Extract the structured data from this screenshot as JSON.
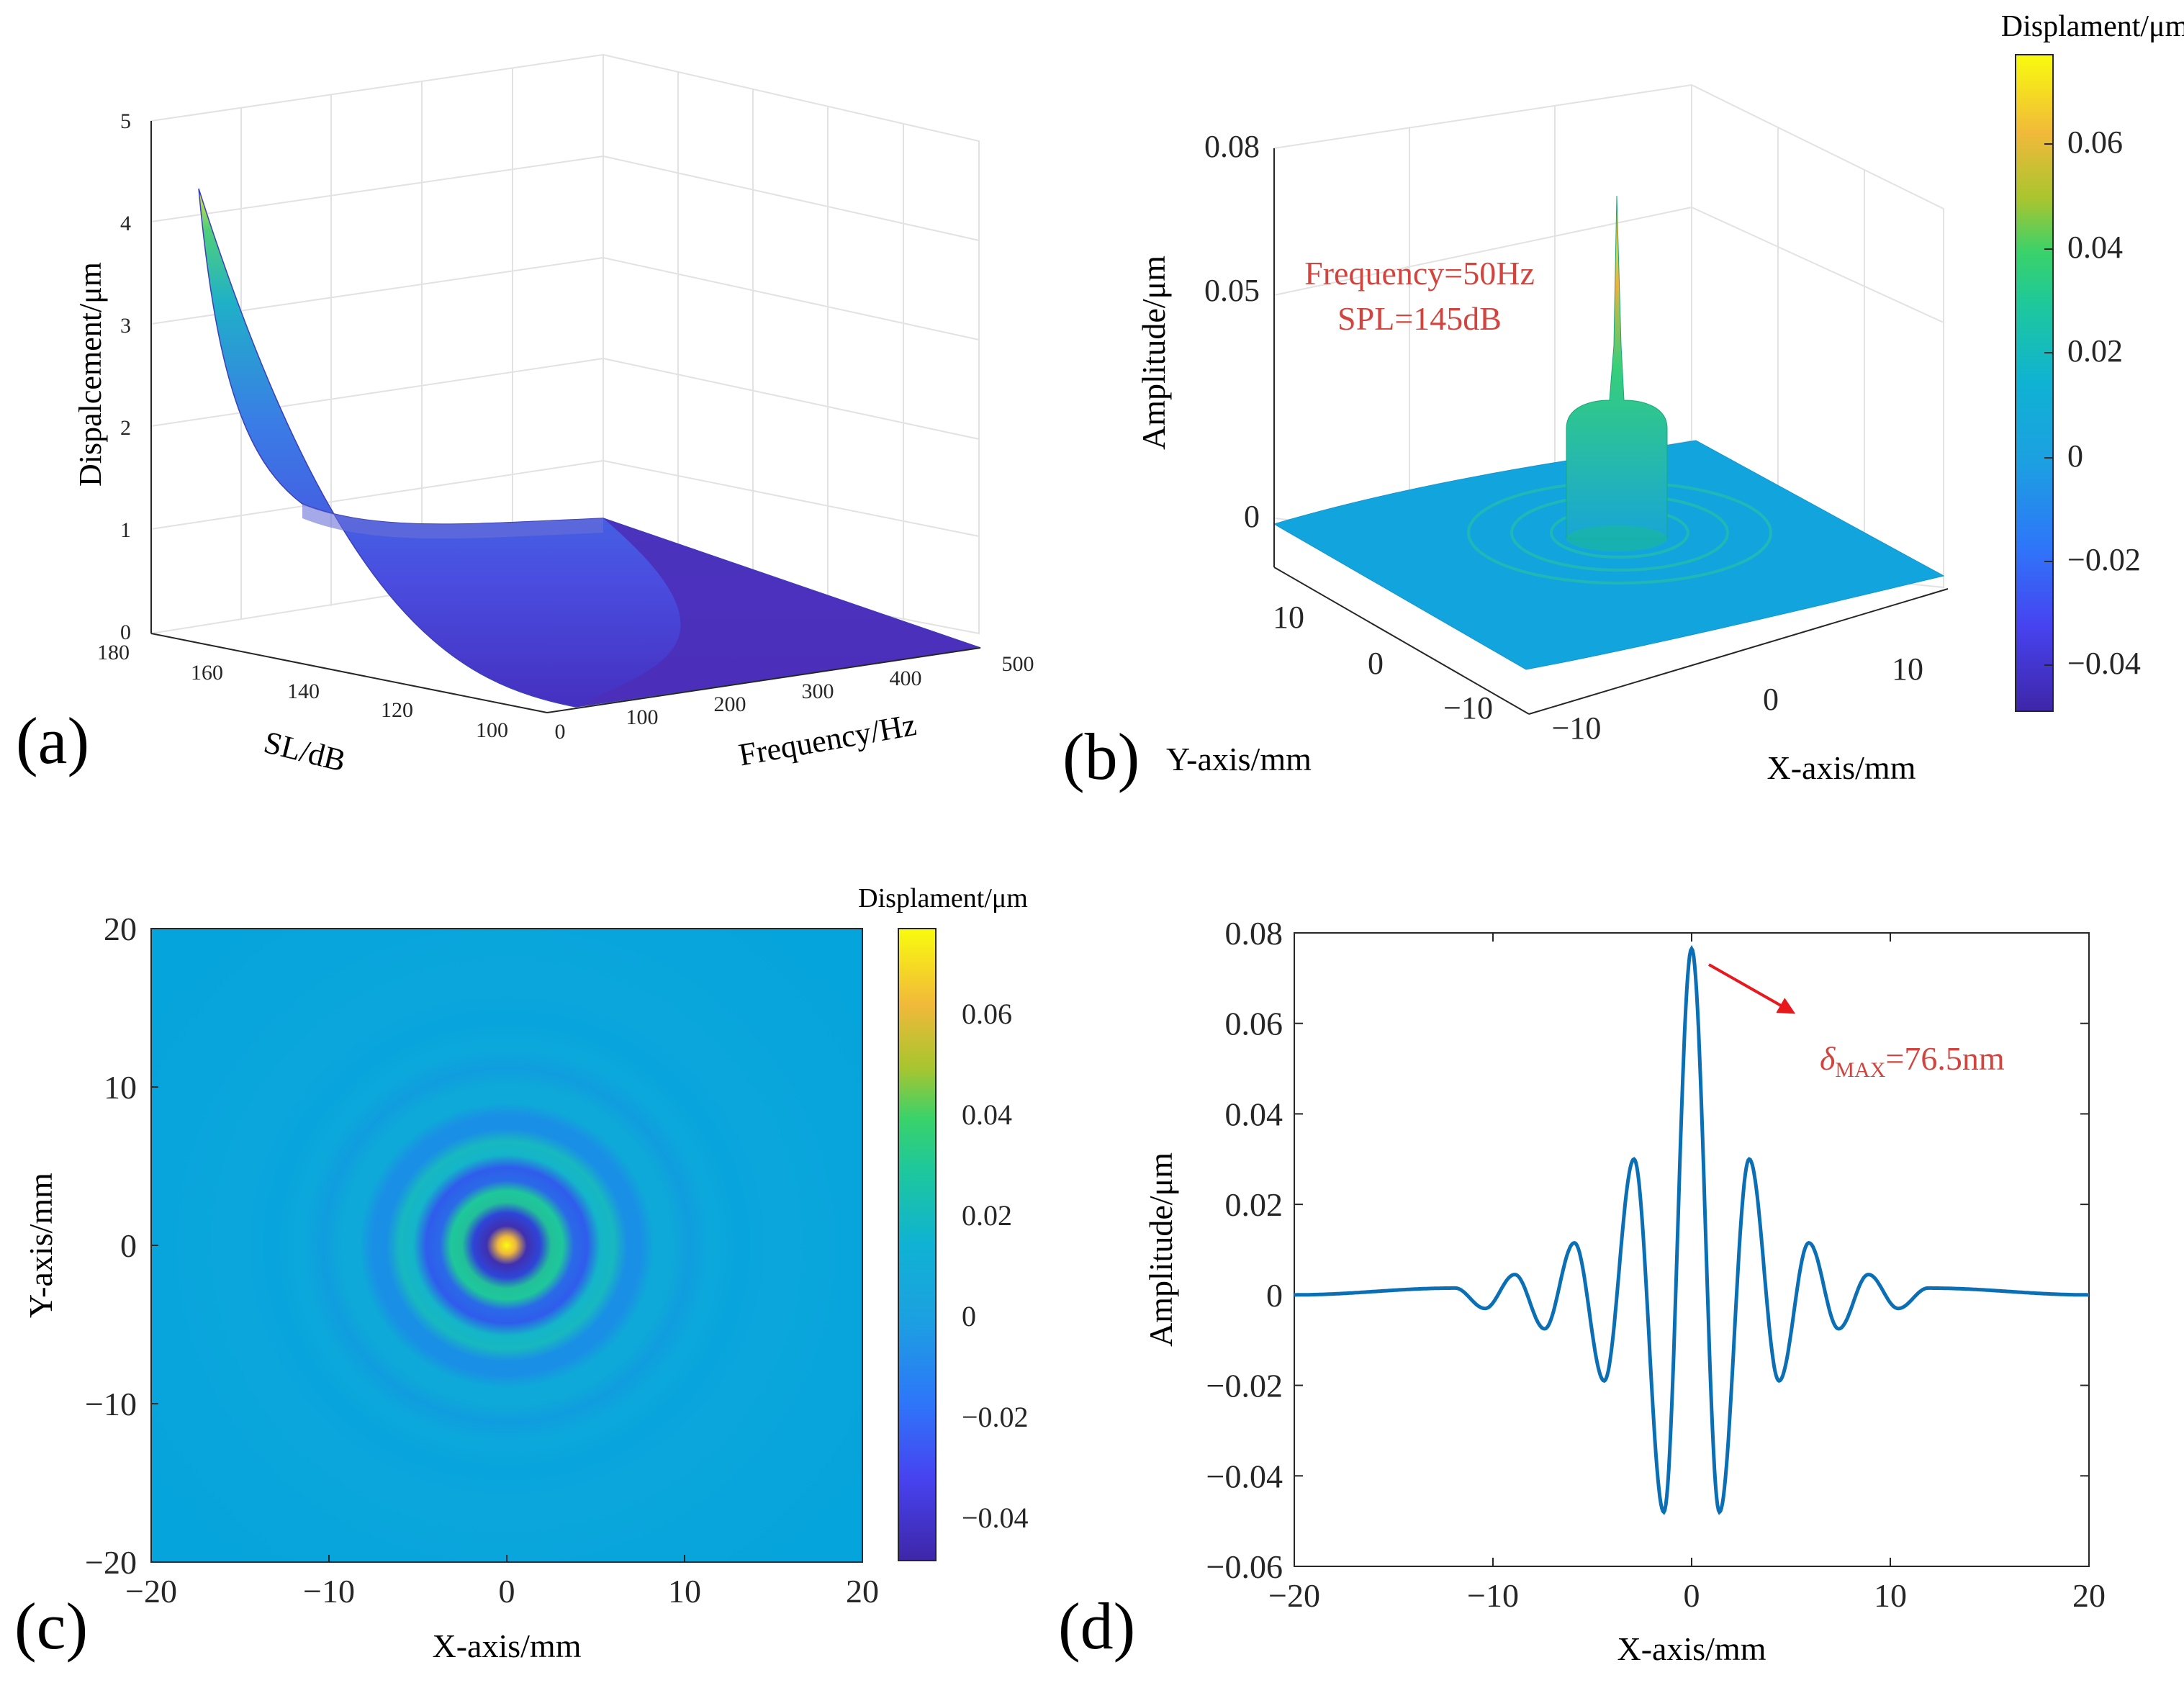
{
  "panels": {
    "a": "(a)",
    "b": "(b)",
    "c": "(c)",
    "d": "(d)"
  },
  "chart_data": [
    {
      "id": "a",
      "type": "surface",
      "zlabel": "Dispalcement/μm",
      "xlabel": "Frequency/Hz",
      "ylabel": "SL/dB",
      "x_ticks": [
        "0",
        "100",
        "200",
        "300",
        "400",
        "500"
      ],
      "y_ticks": [
        "100",
        "120",
        "140",
        "160",
        "180"
      ],
      "z_ticks": [
        "0",
        "1",
        "2",
        "3",
        "4",
        "5"
      ],
      "xlim": [
        0,
        500
      ],
      "ylim": [
        90,
        180
      ],
      "zlim": [
        0,
        5
      ],
      "peak_value": 4.35,
      "surface_note_values": {
        "at_SL_180_freq_0": 4.35,
        "at_SL_100_freq_0": 0.02,
        "at_SL_180_freq_500": 0.95
      }
    },
    {
      "id": "b",
      "type": "surface",
      "zlabel": "Amplitude/μm",
      "xlabel": "X-axis/mm",
      "ylabel": "Y-axis/mm",
      "x_ticks": [
        "−10",
        "0",
        "10"
      ],
      "y_ticks": [
        "−10",
        "0",
        "10"
      ],
      "z_ticks": [
        "0",
        "0.05",
        "0.08"
      ],
      "zlim": [
        0,
        0.08
      ],
      "annotation_lines": [
        "Frequency=50Hz",
        "SPL=145dB"
      ],
      "colorbar": {
        "title": "Displament/μm",
        "ticks": [
          "0.06",
          "0.04",
          "0.02",
          "0",
          "−0.02",
          "−0.04"
        ],
        "range": [
          -0.049,
          0.077
        ]
      }
    },
    {
      "id": "c",
      "type": "heatmap",
      "xlabel": "X-axis/mm",
      "ylabel": "Y-axis/mm",
      "x_ticks": [
        "−20",
        "−10",
        "0",
        "10",
        "20"
      ],
      "y_ticks": [
        "20",
        "10",
        "0",
        "−10",
        "−20"
      ],
      "xlim": [
        -20,
        20
      ],
      "ylim": [
        -20,
        20
      ],
      "colorbar": {
        "title": "Displament/μm",
        "ticks": [
          "0.06",
          "0.04",
          "0.02",
          "0",
          "−0.02",
          "−0.04"
        ],
        "range": [
          -0.049,
          0.077
        ]
      }
    },
    {
      "id": "d",
      "type": "line",
      "xlabel": "X-axis/mm",
      "ylabel": "Amplitude/μm",
      "xlim": [
        -20,
        20
      ],
      "ylim": [
        -0.06,
        0.08
      ],
      "x_ticks": [
        "−20",
        "−10",
        "0",
        "10",
        "20"
      ],
      "y_ticks": [
        "0.08",
        "0.06",
        "0.04",
        "0.02",
        "0",
        "−0.02",
        "−0.04",
        "−0.06"
      ],
      "annotation": {
        "symbol": "δ",
        "subscript": "MAX",
        "value_text": "=76.5nm"
      },
      "series": [
        {
          "color": "#0b6fb5",
          "peaks": [
            {
              "x": 0,
              "y": 0.0765
            },
            {
              "x": -1.4,
              "y": -0.048
            },
            {
              "x": 1.4,
              "y": -0.048
            },
            {
              "x": -2.9,
              "y": 0.03
            },
            {
              "x": 2.9,
              "y": 0.03
            },
            {
              "x": -4.4,
              "y": -0.019
            },
            {
              "x": 4.4,
              "y": -0.019
            },
            {
              "x": -5.9,
              "y": 0.0115
            },
            {
              "x": 5.9,
              "y": 0.0115
            },
            {
              "x": -7.4,
              "y": -0.0075
            },
            {
              "x": 7.4,
              "y": -0.0075
            },
            {
              "x": -8.9,
              "y": 0.0045
            },
            {
              "x": 8.9,
              "y": 0.0045
            },
            {
              "x": -10.4,
              "y": -0.003
            },
            {
              "x": 10.4,
              "y": -0.003
            },
            {
              "x": -11.9,
              "y": 0.0015
            },
            {
              "x": 11.9,
              "y": 0.0015
            }
          ]
        }
      ]
    }
  ]
}
